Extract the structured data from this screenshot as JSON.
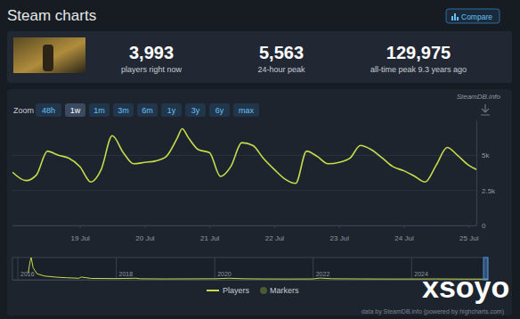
{
  "header": {
    "title": "Steam charts",
    "compare": "Compare",
    "stats": [
      {
        "value": "3,993",
        "label": "players right now"
      },
      {
        "value": "5,563",
        "label": "24-hour peak"
      },
      {
        "value": "129,975",
        "label": "all-time peak 9.3 years ago"
      }
    ]
  },
  "zoom": {
    "label": "Zoom",
    "options": [
      "48h",
      "1w",
      "1m",
      "3m",
      "6m",
      "1y",
      "3y",
      "6y",
      "max"
    ],
    "selected": 1
  },
  "source": "SteamDB.info",
  "chart_data": [
    {
      "type": "line",
      "x": [
        -1.04,
        -0.83,
        -0.67,
        -0.5,
        -0.33,
        -0.17,
        0,
        0.17,
        0.33,
        0.5,
        0.67,
        0.83,
        1.0,
        1.17,
        1.33,
        1.5,
        1.58,
        1.67,
        1.83,
        2.0,
        2.17,
        2.33,
        2.5,
        2.67,
        2.83,
        3.0,
        3.17,
        3.33,
        3.5,
        3.67,
        3.83,
        4.0,
        4.17,
        4.33,
        4.5,
        4.67,
        4.83,
        5.0,
        5.17,
        5.33,
        5.5,
        5.67,
        5.83,
        6.0,
        6.12
      ],
      "series": [
        {
          "name": "Players",
          "color": "#c8dc4a",
          "values": [
            3800,
            3200,
            3600,
            5300,
            5000,
            4800,
            4200,
            3100,
            4000,
            6400,
            5200,
            4400,
            4500,
            4600,
            4900,
            6200,
            6900,
            6300,
            5400,
            5200,
            3500,
            4200,
            5900,
            5700,
            4800,
            4000,
            3300,
            3000,
            5300,
            4900,
            4400,
            4500,
            4800,
            5700,
            5400,
            4800,
            4200,
            3900,
            3500,
            3100,
            4300,
            5563,
            5000,
            4300,
            3993
          ]
        },
        {
          "name": "Markers",
          "color": "#4b5a32",
          "type": "scatter",
          "marker": "circle",
          "values": [
            null,
            null,
            null,
            null,
            null,
            null,
            null,
            null,
            null,
            null,
            null,
            null,
            null,
            null,
            null,
            null,
            null,
            null,
            null,
            null,
            null,
            null,
            null,
            null,
            null,
            null,
            null,
            null,
            null,
            null,
            null,
            null,
            null,
            null,
            null,
            null,
            null,
            null,
            null,
            null,
            null,
            null,
            null,
            null,
            null
          ]
        }
      ],
      "xlim": [
        -1.04,
        6.12
      ],
      "xticks": [
        {
          "value": 0,
          "label": "19 Jul"
        },
        {
          "value": 1,
          "label": "20 Jul"
        },
        {
          "value": 2,
          "label": "21 Jul"
        },
        {
          "value": 3,
          "label": "22 Jul"
        },
        {
          "value": 4,
          "label": "23 Jul"
        },
        {
          "value": 5,
          "label": "24 Jul"
        },
        {
          "value": 6,
          "label": "25 Jul"
        }
      ],
      "ylim": [
        0,
        7500
      ],
      "yticks": [
        0,
        {
          "value": 2500,
          "label": "2.5k"
        },
        {
          "value": 5000,
          "label": "5k"
        }
      ],
      "grid": true,
      "legend": "bottom"
    },
    {
      "type": "line",
      "x": [
        2016.22,
        2016.26,
        2016.28,
        2016.32,
        2016.4,
        2016.55,
        2016.8,
        2017.0,
        2017.25,
        2017.3,
        2017.5,
        2018.0,
        2018.4,
        2018.5,
        2019.0,
        2019.5,
        2020.0,
        2020.3,
        2020.6,
        2021.0,
        2021.5,
        2022.0,
        2022.15,
        2022.4,
        2023.0,
        2023.5,
        2024.0,
        2024.5,
        2025.0,
        2025.56
      ],
      "values": [
        40000,
        110000,
        129975,
        70000,
        35000,
        22000,
        15000,
        12000,
        9000,
        16000,
        8000,
        7000,
        9000,
        6000,
        5000,
        5500,
        6000,
        9000,
        6000,
        5000,
        4500,
        5000,
        10000,
        6000,
        5000,
        4500,
        4500,
        5000,
        4200,
        4000
      ],
      "color": "#c8dc4a",
      "xlim": [
        2015.9,
        2025.56
      ],
      "xticks": [
        2016,
        2018,
        2020,
        2022,
        2024
      ],
      "ylim": [
        0,
        130000
      ],
      "tick_labels": "x"
    }
  ],
  "credits": "data by SteamDB.info (powered by highcharts.com)",
  "watermark": "xsoyo"
}
